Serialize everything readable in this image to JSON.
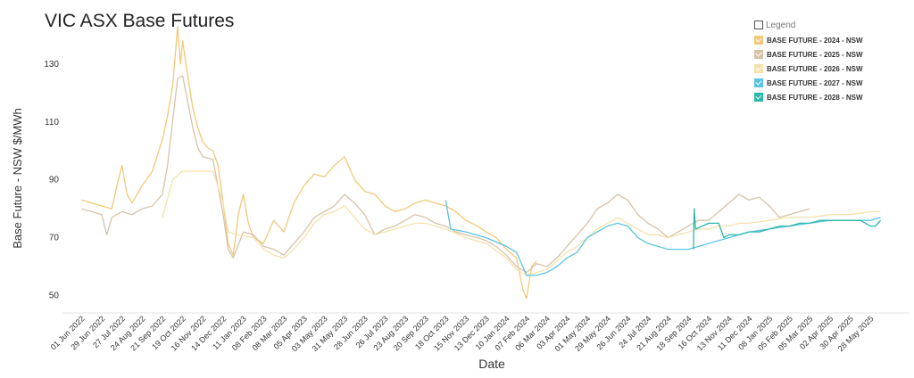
{
  "title": "VIC ASX Base Futures",
  "chart_data": {
    "type": "line",
    "title": "VIC ASX Base Futures",
    "xlabel": "Date",
    "ylabel": "Base Future - NSW $/MWh",
    "ylim": [
      44,
      146
    ],
    "yticks": [
      50,
      70,
      90,
      110,
      130
    ],
    "xlim": [
      "2022-05-18",
      "2025-07-10"
    ],
    "xtick_labels": [
      "01 Jun 2022",
      "29 Jun 2022",
      "27 Jul 2022",
      "24 Aug 2022",
      "21 Sep 2022",
      "19 Oct 2022",
      "16 Nov 2022",
      "14 Dec 2022",
      "11 Jan 2023",
      "08 Feb 2023",
      "08 Mar 2023",
      "05 Apr 2023",
      "03 May 2023",
      "31 May 2023",
      "28 Jun 2023",
      "26 Jul 2023",
      "23 Aug 2023",
      "20 Sep 2023",
      "18 Oct 2023",
      "15 Nov 2023",
      "13 Dec 2023",
      "10 Jan 2024",
      "07 Feb 2024",
      "06 Mar 2024",
      "03 Apr 2024",
      "01 May 2024",
      "29 May 2024",
      "26 Jun 2024",
      "24 Jul 2024",
      "21 Aug 2024",
      "18 Sep 2024",
      "16 Oct 2024",
      "13 Nov 2024",
      "11 Dec 2024",
      "08 Jan 2025",
      "05 Feb 2025",
      "05 Mar 2025",
      "02 Apr 2025",
      "30 Apr 2025",
      "28 May 2025"
    ],
    "xtick_dates": [
      "2022-06-01",
      "2022-06-29",
      "2022-07-27",
      "2022-08-24",
      "2022-09-21",
      "2022-10-19",
      "2022-11-16",
      "2022-12-14",
      "2023-01-11",
      "2023-02-08",
      "2023-03-08",
      "2023-04-05",
      "2023-05-03",
      "2023-05-31",
      "2023-06-28",
      "2023-07-26",
      "2023-08-23",
      "2023-09-20",
      "2023-10-18",
      "2023-11-15",
      "2023-12-13",
      "2024-01-10",
      "2024-02-07",
      "2024-03-06",
      "2024-04-03",
      "2024-05-01",
      "2024-05-29",
      "2024-06-26",
      "2024-07-24",
      "2024-08-21",
      "2024-09-18",
      "2024-10-16",
      "2024-11-13",
      "2024-12-11",
      "2025-01-08",
      "2025-02-05",
      "2025-03-05",
      "2025-04-02",
      "2025-04-30",
      "2025-05-28"
    ],
    "grid": false,
    "legend_position": "top-right",
    "legend_title": "Legend",
    "series": [
      {
        "name": "BASE FUTURE - 2024 - NSW",
        "color": "#f2c879",
        "points": [
          [
            "2022-06-01",
            83
          ],
          [
            "2022-06-15",
            82
          ],
          [
            "2022-06-29",
            81
          ],
          [
            "2022-07-13",
            80
          ],
          [
            "2022-07-20",
            88
          ],
          [
            "2022-07-27",
            95
          ],
          [
            "2022-08-03",
            85
          ],
          [
            "2022-08-10",
            82
          ],
          [
            "2022-08-24",
            88
          ],
          [
            "2022-09-07",
            93
          ],
          [
            "2022-09-21",
            104
          ],
          [
            "2022-09-28",
            112
          ],
          [
            "2022-10-05",
            122
          ],
          [
            "2022-10-12",
            143
          ],
          [
            "2022-10-16",
            130
          ],
          [
            "2022-10-19",
            138
          ],
          [
            "2022-10-26",
            126
          ],
          [
            "2022-11-02",
            115
          ],
          [
            "2022-11-09",
            108
          ],
          [
            "2022-11-16",
            103
          ],
          [
            "2022-11-23",
            101
          ],
          [
            "2022-11-30",
            100
          ],
          [
            "2022-12-07",
            95
          ],
          [
            "2022-12-14",
            82
          ],
          [
            "2022-12-21",
            68
          ],
          [
            "2022-12-28",
            64
          ],
          [
            "2023-01-04",
            78
          ],
          [
            "2023-01-11",
            85
          ],
          [
            "2023-01-18",
            75
          ],
          [
            "2023-01-25",
            70
          ],
          [
            "2023-02-08",
            68
          ],
          [
            "2023-02-22",
            76
          ],
          [
            "2023-03-08",
            72
          ],
          [
            "2023-03-22",
            82
          ],
          [
            "2023-04-05",
            88
          ],
          [
            "2023-04-19",
            92
          ],
          [
            "2023-05-03",
            91
          ],
          [
            "2023-05-17",
            95
          ],
          [
            "2023-05-31",
            98
          ],
          [
            "2023-06-14",
            90
          ],
          [
            "2023-06-21",
            88
          ],
          [
            "2023-06-28",
            86
          ],
          [
            "2023-07-12",
            85
          ],
          [
            "2023-07-26",
            81
          ],
          [
            "2023-08-09",
            79
          ],
          [
            "2023-08-23",
            80
          ],
          [
            "2023-09-06",
            82
          ],
          [
            "2023-09-20",
            83
          ],
          [
            "2023-10-04",
            82
          ],
          [
            "2023-10-18",
            81
          ],
          [
            "2023-11-01",
            79
          ],
          [
            "2023-11-15",
            76
          ],
          [
            "2023-12-01",
            74
          ],
          [
            "2023-12-13",
            72
          ],
          [
            "2023-12-27",
            70
          ],
          [
            "2024-01-10",
            66
          ],
          [
            "2024-01-24",
            63
          ],
          [
            "2024-02-02",
            52
          ],
          [
            "2024-02-07",
            49
          ],
          [
            "2024-02-14",
            60
          ],
          [
            "2024-02-21",
            62
          ]
        ]
      },
      {
        "name": "BASE FUTURE - 2025 - NSW",
        "color": "#d8c2a8",
        "points": [
          [
            "2022-06-01",
            80
          ],
          [
            "2022-06-15",
            79
          ],
          [
            "2022-06-29",
            78
          ],
          [
            "2022-07-06",
            71
          ],
          [
            "2022-07-13",
            77
          ],
          [
            "2022-07-27",
            79
          ],
          [
            "2022-08-10",
            78
          ],
          [
            "2022-08-24",
            80
          ],
          [
            "2022-09-07",
            81
          ],
          [
            "2022-09-21",
            85
          ],
          [
            "2022-09-28",
            95
          ],
          [
            "2022-10-05",
            110
          ],
          [
            "2022-10-12",
            125
          ],
          [
            "2022-10-19",
            126
          ],
          [
            "2022-10-26",
            117
          ],
          [
            "2022-11-02",
            108
          ],
          [
            "2022-11-09",
            101
          ],
          [
            "2022-11-16",
            98
          ],
          [
            "2022-11-30",
            97
          ],
          [
            "2022-12-14",
            78
          ],
          [
            "2022-12-21",
            66
          ],
          [
            "2022-12-28",
            63
          ],
          [
            "2023-01-11",
            72
          ],
          [
            "2023-01-25",
            71
          ],
          [
            "2023-02-08",
            67
          ],
          [
            "2023-02-22",
            66
          ],
          [
            "2023-03-08",
            64
          ],
          [
            "2023-03-22",
            68
          ],
          [
            "2023-04-05",
            72
          ],
          [
            "2023-04-19",
            77
          ],
          [
            "2023-05-03",
            79
          ],
          [
            "2023-05-17",
            81
          ],
          [
            "2023-05-31",
            85
          ],
          [
            "2023-06-14",
            82
          ],
          [
            "2023-06-28",
            78
          ],
          [
            "2023-07-12",
            71
          ],
          [
            "2023-07-26",
            73
          ],
          [
            "2023-08-09",
            74
          ],
          [
            "2023-08-23",
            76
          ],
          [
            "2023-09-06",
            78
          ],
          [
            "2023-09-20",
            77
          ],
          [
            "2023-10-04",
            75
          ],
          [
            "2023-10-18",
            74
          ],
          [
            "2023-11-01",
            72
          ],
          [
            "2023-11-15",
            71
          ],
          [
            "2023-12-01",
            70
          ],
          [
            "2023-12-13",
            69
          ],
          [
            "2023-12-27",
            67
          ],
          [
            "2024-01-10",
            64
          ],
          [
            "2024-01-24",
            60
          ],
          [
            "2024-02-07",
            58
          ],
          [
            "2024-02-21",
            61
          ],
          [
            "2024-03-06",
            60
          ],
          [
            "2024-03-20",
            63
          ],
          [
            "2024-04-03",
            67
          ],
          [
            "2024-04-17",
            71
          ],
          [
            "2024-05-01",
            75
          ],
          [
            "2024-05-15",
            80
          ],
          [
            "2024-05-29",
            82
          ],
          [
            "2024-06-12",
            85
          ],
          [
            "2024-06-26",
            83
          ],
          [
            "2024-07-10",
            78
          ],
          [
            "2024-07-24",
            75
          ],
          [
            "2024-08-07",
            73
          ],
          [
            "2024-08-21",
            70
          ],
          [
            "2024-09-04",
            72
          ],
          [
            "2024-09-18",
            74
          ],
          [
            "2024-10-02",
            76
          ],
          [
            "2024-10-16",
            76
          ],
          [
            "2024-10-30",
            79
          ],
          [
            "2024-11-13",
            82
          ],
          [
            "2024-11-27",
            85
          ],
          [
            "2024-12-11",
            83
          ],
          [
            "2024-12-25",
            84
          ],
          [
            "2025-01-08",
            81
          ],
          [
            "2025-01-22",
            77
          ],
          [
            "2025-02-05",
            78
          ],
          [
            "2025-02-19",
            79
          ],
          [
            "2025-03-05",
            80
          ]
        ]
      },
      {
        "name": "BASE FUTURE - 2026 - NSW",
        "color": "#f5e2ab",
        "points": [
          [
            "2022-09-21",
            77
          ],
          [
            "2022-10-05",
            90
          ],
          [
            "2022-10-19",
            93
          ],
          [
            "2022-11-02",
            93
          ],
          [
            "2022-11-16",
            93
          ],
          [
            "2022-11-30",
            93
          ],
          [
            "2022-12-14",
            82
          ],
          [
            "2022-12-21",
            72
          ],
          [
            "2023-01-04",
            71
          ],
          [
            "2023-01-25",
            70
          ],
          [
            "2023-02-08",
            66
          ],
          [
            "2023-02-22",
            64
          ],
          [
            "2023-03-08",
            63
          ],
          [
            "2023-03-22",
            66
          ],
          [
            "2023-04-05",
            70
          ],
          [
            "2023-04-19",
            75
          ],
          [
            "2023-05-03",
            78
          ],
          [
            "2023-05-17",
            79
          ],
          [
            "2023-05-31",
            81
          ],
          [
            "2023-06-14",
            77
          ],
          [
            "2023-06-28",
            73
          ],
          [
            "2023-07-12",
            71
          ],
          [
            "2023-07-26",
            72
          ],
          [
            "2023-08-09",
            73
          ],
          [
            "2023-08-23",
            74
          ],
          [
            "2023-09-06",
            75
          ],
          [
            "2023-09-20",
            75
          ],
          [
            "2023-10-18",
            73
          ],
          [
            "2023-11-15",
            70
          ],
          [
            "2023-12-13",
            68
          ],
          [
            "2024-01-10",
            63
          ],
          [
            "2024-01-24",
            59
          ],
          [
            "2024-02-07",
            57
          ],
          [
            "2024-02-21",
            58
          ],
          [
            "2024-03-06",
            59
          ],
          [
            "2024-03-20",
            62
          ],
          [
            "2024-04-03",
            65
          ],
          [
            "2024-04-17",
            67
          ],
          [
            "2024-05-01",
            70
          ],
          [
            "2024-05-15",
            73
          ],
          [
            "2024-05-29",
            75
          ],
          [
            "2024-06-12",
            77
          ],
          [
            "2024-06-26",
            75
          ],
          [
            "2024-07-10",
            73
          ],
          [
            "2024-07-24",
            71
          ],
          [
            "2024-08-07",
            71
          ],
          [
            "2024-08-21",
            70
          ],
          [
            "2024-09-04",
            71
          ],
          [
            "2024-09-18",
            72
          ],
          [
            "2024-10-02",
            73
          ],
          [
            "2024-10-16",
            73
          ],
          [
            "2024-10-30",
            74
          ],
          [
            "2024-11-13",
            74
          ],
          [
            "2024-11-27",
            75
          ],
          [
            "2024-12-11",
            75
          ],
          [
            "2025-01-08",
            76
          ],
          [
            "2025-02-05",
            77
          ],
          [
            "2025-03-05",
            77
          ],
          [
            "2025-04-02",
            78
          ],
          [
            "2025-04-30",
            78
          ],
          [
            "2025-05-28",
            79
          ],
          [
            "2025-06-11",
            79
          ]
        ]
      },
      {
        "name": "BASE FUTURE - 2027 - NSW",
        "color": "#5bc4e3",
        "points": [
          [
            "2023-10-18",
            83
          ],
          [
            "2023-10-25",
            73
          ],
          [
            "2023-11-15",
            72
          ],
          [
            "2023-12-13",
            70
          ],
          [
            "2024-01-10",
            67
          ],
          [
            "2024-01-24",
            65
          ],
          [
            "2024-02-07",
            57
          ],
          [
            "2024-02-21",
            57
          ],
          [
            "2024-03-06",
            58
          ],
          [
            "2024-03-20",
            60
          ],
          [
            "2024-04-03",
            63
          ],
          [
            "2024-04-17",
            65
          ],
          [
            "2024-05-01",
            70
          ],
          [
            "2024-05-15",
            72
          ],
          [
            "2024-05-29",
            74
          ],
          [
            "2024-06-12",
            75
          ],
          [
            "2024-06-26",
            74
          ],
          [
            "2024-07-10",
            70
          ],
          [
            "2024-07-24",
            68
          ],
          [
            "2024-08-07",
            67
          ],
          [
            "2024-08-21",
            66
          ],
          [
            "2024-09-04",
            66
          ],
          [
            "2024-09-18",
            66
          ],
          [
            "2024-10-02",
            67
          ],
          [
            "2024-10-16",
            68
          ],
          [
            "2024-10-30",
            69
          ],
          [
            "2024-11-13",
            70
          ],
          [
            "2024-11-27",
            71
          ],
          [
            "2024-12-11",
            72
          ],
          [
            "2025-01-08",
            73
          ],
          [
            "2025-02-05",
            74
          ],
          [
            "2025-03-05",
            75
          ],
          [
            "2025-04-02",
            76
          ],
          [
            "2025-04-30",
            76
          ],
          [
            "2025-05-28",
            76
          ],
          [
            "2025-06-11",
            77
          ]
        ]
      },
      {
        "name": "BASE FUTURE - 2028 - NSW",
        "color": "#2cb8a8",
        "points": [
          [
            "2024-09-25",
            66
          ],
          [
            "2024-09-26",
            80
          ],
          [
            "2024-09-28",
            73
          ],
          [
            "2024-10-16",
            75
          ],
          [
            "2024-10-30",
            75
          ],
          [
            "2024-11-06",
            70
          ],
          [
            "2024-11-13",
            71
          ],
          [
            "2024-11-27",
            71
          ],
          [
            "2024-12-11",
            72
          ],
          [
            "2024-12-25",
            72
          ],
          [
            "2025-01-08",
            73
          ],
          [
            "2025-01-22",
            74
          ],
          [
            "2025-02-05",
            74
          ],
          [
            "2025-02-19",
            75
          ],
          [
            "2025-03-05",
            75
          ],
          [
            "2025-03-19",
            76
          ],
          [
            "2025-04-02",
            76
          ],
          [
            "2025-04-16",
            76
          ],
          [
            "2025-04-30",
            76
          ],
          [
            "2025-05-14",
            76
          ],
          [
            "2025-05-28",
            74
          ],
          [
            "2025-06-04",
            74
          ],
          [
            "2025-06-11",
            76
          ]
        ]
      }
    ]
  }
}
